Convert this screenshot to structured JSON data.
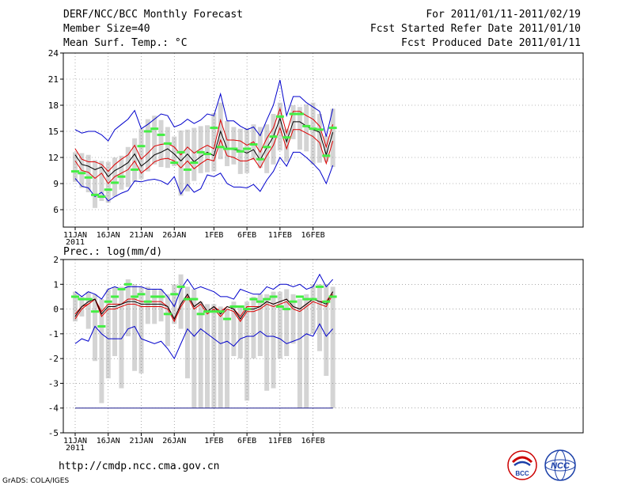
{
  "header": {
    "title": "DERF/NCC/BCC Monthly Forecast",
    "member": "Member Size=40",
    "variable": "Mean Surf. Temp.: °C",
    "period": "For 2011/01/11-2011/02/19",
    "started": "Fcst Started Refer Date 2011/01/10",
    "produced": "Fcst Produced Date 2011/01/11"
  },
  "footer": {
    "url": "http://cmdp.ncc.cma.gov.cn",
    "grads": "GrADS: COLA/IGES",
    "logo_bcc": "BCC",
    "logo_ncc": "NCC"
  },
  "colors": {
    "envelope": "#0000cc",
    "spread": "#dd0000",
    "mean": "#000000",
    "obs": "#44ee44",
    "box": "#d4d4d4"
  },
  "chart_data": [
    {
      "type": "box-line",
      "title": "Mean Surf. Temp.: °C",
      "ylabel": "",
      "ylim": [
        4,
        24
      ],
      "yticks": [
        6,
        9,
        12,
        15,
        18,
        21,
        24
      ],
      "xtick_labels": [
        "11JAN",
        "16JAN",
        "21JAN",
        "26JAN",
        "1FEB",
        "6FEB",
        "11FEB",
        "16FEB"
      ],
      "xtick_index": [
        0,
        5,
        10,
        15,
        21,
        26,
        31,
        36
      ],
      "x_sublabel": "2011",
      "days": 40,
      "series": [
        {
          "name": "max",
          "values": [
            15.2,
            14.8,
            15.0,
            15.0,
            14.6,
            13.9,
            15.2,
            15.8,
            16.4,
            17.4,
            15.3,
            15.8,
            16.4,
            17.0,
            16.8,
            15.5,
            15.8,
            16.4,
            15.9,
            16.3,
            17.0,
            16.8,
            19.3,
            16.2,
            16.2,
            15.6,
            15.2,
            15.5,
            14.5,
            16.3,
            18.0,
            20.9,
            16.8,
            19.0,
            19.0,
            18.3,
            17.8,
            17.3,
            14.4,
            17.6
          ]
        },
        {
          "name": "upper",
          "values": [
            13.0,
            11.8,
            11.5,
            11.5,
            11.2,
            10.4,
            11.2,
            11.8,
            12.3,
            13.4,
            11.8,
            12.5,
            13.3,
            13.5,
            13.6,
            13.2,
            12.3,
            13.2,
            12.5,
            13.0,
            13.4,
            13.0,
            16.3,
            14.0,
            14.0,
            13.9,
            13.4,
            13.8,
            12.6,
            14.2,
            15.4,
            17.6,
            14.8,
            17.3,
            17.3,
            16.8,
            16.4,
            15.6,
            13.2,
            15.8
          ]
        },
        {
          "name": "mean",
          "values": [
            12.3,
            11.2,
            11.0,
            10.6,
            10.9,
            9.8,
            10.5,
            10.9,
            11.4,
            12.4,
            11.0,
            11.6,
            12.3,
            12.6,
            13.0,
            12.4,
            11.6,
            12.4,
            11.5,
            12.1,
            12.6,
            12.2,
            15.0,
            13.0,
            12.9,
            12.8,
            12.5,
            12.9,
            11.7,
            13.1,
            14.4,
            16.5,
            13.8,
            16.1,
            16.1,
            15.6,
            15.2,
            14.9,
            12.3,
            14.9
          ]
        },
        {
          "name": "lower",
          "values": [
            11.6,
            10.5,
            10.3,
            9.6,
            10.2,
            9.0,
            9.8,
            10.2,
            10.6,
            11.6,
            10.2,
            10.8,
            11.5,
            11.8,
            11.9,
            11.6,
            10.8,
            11.6,
            10.7,
            11.3,
            11.8,
            11.6,
            14.0,
            12.2,
            12.0,
            11.6,
            11.6,
            11.9,
            10.8,
            12.2,
            13.4,
            15.4,
            13.0,
            15.2,
            15.2,
            14.8,
            14.4,
            13.7,
            11.3,
            13.9
          ]
        },
        {
          "name": "min",
          "values": [
            9.6,
            8.7,
            8.5,
            7.5,
            8.0,
            7.0,
            7.5,
            7.9,
            8.2,
            9.3,
            9.2,
            9.4,
            9.5,
            9.3,
            8.9,
            9.8,
            7.8,
            8.9,
            8.0,
            8.4,
            10.0,
            9.8,
            10.2,
            9.0,
            8.6,
            8.6,
            8.5,
            8.9,
            8.1,
            9.4,
            10.4,
            12.0,
            11.0,
            12.6,
            12.6,
            12.0,
            11.3,
            10.5,
            9.0,
            11.1
          ]
        },
        {
          "name": "obs",
          "values": [
            10.4,
            10.2,
            9.7,
            7.7,
            7.5,
            8.3,
            9.1,
            9.8,
            null,
            10.6,
            13.3,
            15.0,
            15.3,
            14.6,
            13.6,
            11.4,
            12.6,
            10.6,
            11.4,
            12.6,
            12.4,
            15.4,
            13.2,
            13.0,
            13.0,
            12.7,
            13.0,
            13.5,
            11.8,
            13.2,
            14.4,
            16.7,
            14.3,
            17.0,
            17.0,
            15.6,
            15.3,
            15.2,
            12.2,
            15.4
          ]
        },
        {
          "name": "box_top",
          "values": [
            12.6,
            12.5,
            12.3,
            11.7,
            11.6,
            11.5,
            12.0,
            12.2,
            13.2,
            14.2,
            15.3,
            16.4,
            16.8,
            16.3,
            15.5,
            14.4,
            15.1,
            15.2,
            15.4,
            15.6,
            15.7,
            17.1,
            18.3,
            16.2,
            15.5,
            15.3,
            15.4,
            15.8,
            15.5,
            15.8,
            17.0,
            18.3,
            15.3,
            18.0,
            17.8,
            18.1,
            18.3,
            17.0,
            14.5,
            17.6
          ]
        },
        {
          "name": "box_bottom",
          "values": [
            9.2,
            8.5,
            8.0,
            6.2,
            7.0,
            6.8,
            7.5,
            8.3,
            8.6,
            9.2,
            9.5,
            10.4,
            11.2,
            10.9,
            10.8,
            11.0,
            7.6,
            8.1,
            9.3,
            10.2,
            10.3,
            10.4,
            11.8,
            11.0,
            11.2,
            10.1,
            10.2,
            11.7,
            10.8,
            10.2,
            11.2,
            12.8,
            11.5,
            14.1,
            12.9,
            12.7,
            11.2,
            11.4,
            11.5,
            10.9
          ]
        }
      ]
    },
    {
      "type": "box-line",
      "title": "Prec.: log(mm/d)",
      "ylabel": "",
      "ylim": [
        -5,
        2
      ],
      "yticks": [
        -5,
        -4,
        -3,
        -2,
        -1,
        0,
        1,
        2
      ],
      "xtick_labels": [
        "11JAN",
        "16JAN",
        "21JAN",
        "26JAN",
        "1FEB",
        "6FEB",
        "11FEB",
        "16FEB"
      ],
      "xtick_index": [
        0,
        5,
        10,
        15,
        21,
        26,
        31,
        36
      ],
      "x_sublabel": "2011",
      "days": 40,
      "series": [
        {
          "name": "max",
          "values": [
            0.7,
            0.5,
            0.7,
            0.6,
            0.4,
            0.8,
            0.9,
            0.8,
            0.9,
            0.9,
            0.9,
            0.8,
            0.8,
            0.8,
            0.5,
            0.1,
            0.8,
            1.2,
            0.8,
            0.9,
            0.8,
            0.7,
            0.5,
            0.5,
            0.4,
            0.8,
            0.7,
            0.6,
            0.6,
            0.9,
            0.8,
            1.0,
            1.0,
            0.9,
            1.0,
            0.8,
            0.9,
            1.4,
            0.9,
            1.2
          ]
        },
        {
          "name": "mean",
          "values": [
            -0.3,
            0.1,
            0.3,
            0.4,
            -0.2,
            0.1,
            0.1,
            0.2,
            0.3,
            0.3,
            0.2,
            0.2,
            0.2,
            0.2,
            0.1,
            -0.4,
            0.2,
            0.6,
            0.1,
            0.3,
            -0.1,
            0.1,
            -0.2,
            0.1,
            0.0,
            -0.4,
            0.0,
            0.0,
            0.1,
            0.3,
            0.2,
            0.3,
            0.4,
            0.1,
            0.0,
            0.2,
            0.4,
            0.3,
            0.2,
            0.7
          ]
        },
        {
          "name": "upper",
          "values": [
            -0.2,
            0.1,
            0.2,
            0.4,
            -0.1,
            0.2,
            0.2,
            0.2,
            0.4,
            0.4,
            0.3,
            0.3,
            0.3,
            0.3,
            0.1,
            -0.4,
            0.2,
            0.6,
            0.1,
            0.3,
            -0.1,
            0.1,
            -0.1,
            0.1,
            0.0,
            -0.3,
            0.1,
            0.1,
            0.1,
            0.3,
            0.2,
            0.3,
            0.4,
            0.1,
            0.0,
            0.2,
            0.4,
            0.3,
            0.3,
            0.7
          ]
        },
        {
          "name": "lower",
          "values": [
            -0.4,
            0.0,
            0.2,
            0.4,
            -0.3,
            0.0,
            0.0,
            0.1,
            0.2,
            0.2,
            0.1,
            0.1,
            0.1,
            0.1,
            0.0,
            -0.5,
            0.1,
            0.5,
            0.0,
            0.2,
            -0.2,
            0.0,
            -0.3,
            0.0,
            -0.1,
            -0.5,
            -0.1,
            -0.1,
            0.0,
            0.2,
            0.1,
            0.2,
            0.3,
            0.0,
            -0.1,
            0.1,
            0.3,
            0.2,
            0.1,
            0.6
          ]
        },
        {
          "name": "min",
          "values": [
            -1.4,
            -1.2,
            -1.3,
            -0.7,
            -1.0,
            -1.2,
            -1.2,
            -1.2,
            -0.8,
            -0.7,
            -1.2,
            -1.3,
            -1.4,
            -1.3,
            -1.6,
            -2.0,
            -1.4,
            -0.8,
            -1.1,
            -0.8,
            -1.0,
            -1.2,
            -1.4,
            -1.3,
            -1.5,
            -1.2,
            -1.1,
            -1.1,
            -0.9,
            -1.1,
            -1.1,
            -1.2,
            -1.4,
            -1.3,
            -1.2,
            -1.0,
            -1.1,
            -0.6,
            -1.1,
            -0.8
          ]
        },
        {
          "name": "obs",
          "values": [
            0.5,
            0.4,
            0.4,
            -0.1,
            -0.7,
            0.3,
            0.5,
            0.8,
            1.0,
            0.5,
            0.6,
            0.3,
            0.5,
            0.5,
            -0.2,
            0.6,
            0.9,
            0.4,
            0.4,
            -0.2,
            -0.1,
            -0.1,
            -0.1,
            -0.4,
            0.1,
            0.1,
            0.0,
            0.4,
            0.3,
            0.4,
            0.5,
            0.1,
            0.0,
            0.3,
            0.5,
            0.4,
            0.4,
            0.9,
            0.3,
            0.5
          ]
        },
        {
          "name": "box_top",
          "values": [
            0.7,
            0.5,
            0.7,
            0.6,
            0.4,
            0.8,
            0.9,
            0.9,
            1.2,
            1.0,
            0.9,
            0.9,
            0.8,
            0.8,
            0.6,
            1.0,
            1.4,
            0.9,
            0.8,
            0.3,
            0.2,
            0.2,
            0.1,
            0.0,
            0.3,
            0.1,
            0.3,
            0.5,
            0.6,
            0.6,
            0.7,
            0.7,
            0.8,
            0.6,
            0.4,
            0.6,
            1.0,
            1.0,
            1.0,
            0.9
          ]
        },
        {
          "name": "box_bottom",
          "values": [
            -0.5,
            -0.3,
            -0.8,
            -2.1,
            -3.8,
            -2.8,
            -1.9,
            -3.2,
            -1.1,
            -2.5,
            -2.6,
            -0.6,
            -0.6,
            -0.5,
            -1.5,
            -0.6,
            -0.8,
            -2.8,
            -4.0,
            -4.0,
            -4.0,
            -4.0,
            -4.0,
            -4.0,
            -1.9,
            -2.0,
            -3.7,
            -2.0,
            -1.9,
            -3.3,
            -3.2,
            -2.0,
            -1.9,
            -1.4,
            -4.0,
            -4.0,
            -1.0,
            -1.7,
            -2.7,
            -4.0
          ]
        },
        {
          "name": "floor",
          "values": [
            -4,
            -4,
            -4,
            -4,
            -4,
            -4,
            -4,
            -4,
            -4,
            -4,
            -4,
            -4,
            -4,
            -4,
            -4,
            -4,
            -4,
            -4,
            -4,
            -4,
            -4,
            -4,
            -4,
            -4,
            -4,
            -4,
            -4,
            -4,
            -4,
            -4,
            -4,
            -4,
            -4,
            -4,
            -4,
            -4,
            -4,
            -4,
            -4,
            -4
          ]
        }
      ]
    }
  ]
}
